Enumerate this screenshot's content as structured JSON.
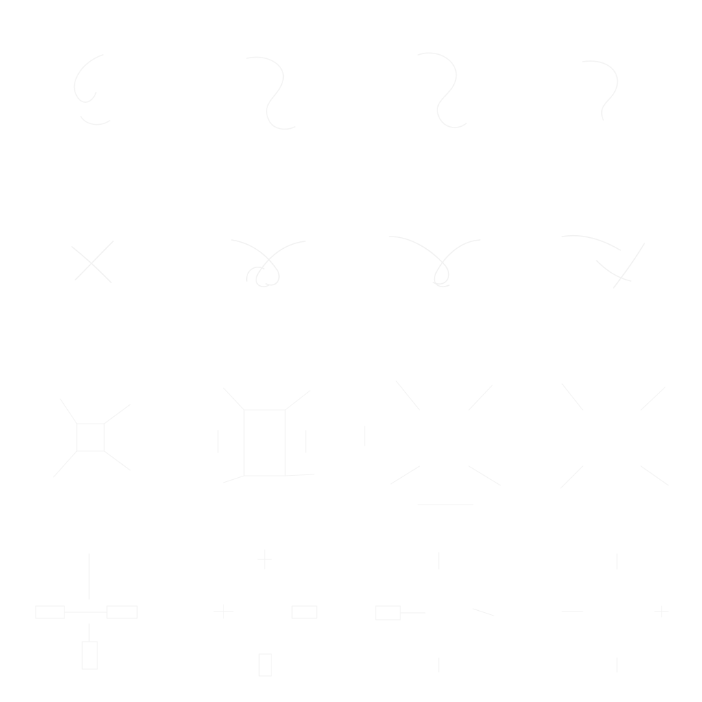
{
  "colors": {
    "background": "#ffffff",
    "line": "#f2f2f2",
    "line_light": "#f6f6f6"
  },
  "rows": [
    {
      "name": "row-1",
      "icons": [
        "squiggle-icon",
        "squiggle-icon",
        "squiggle-icon",
        "squiggle-icon"
      ]
    },
    {
      "name": "row-2",
      "icons": [
        "cross-icon",
        "loop-cross-icon",
        "loop-cross-icon",
        "scribble-icon"
      ]
    },
    {
      "name": "row-3",
      "icons": [
        "node-square-icon",
        "node-square-icon",
        "node-square-icon",
        "node-square-icon"
      ]
    },
    {
      "name": "row-4",
      "icons": [
        "connector-icon",
        "connector-icon",
        "connector-icon",
        "connector-icon"
      ]
    }
  ]
}
